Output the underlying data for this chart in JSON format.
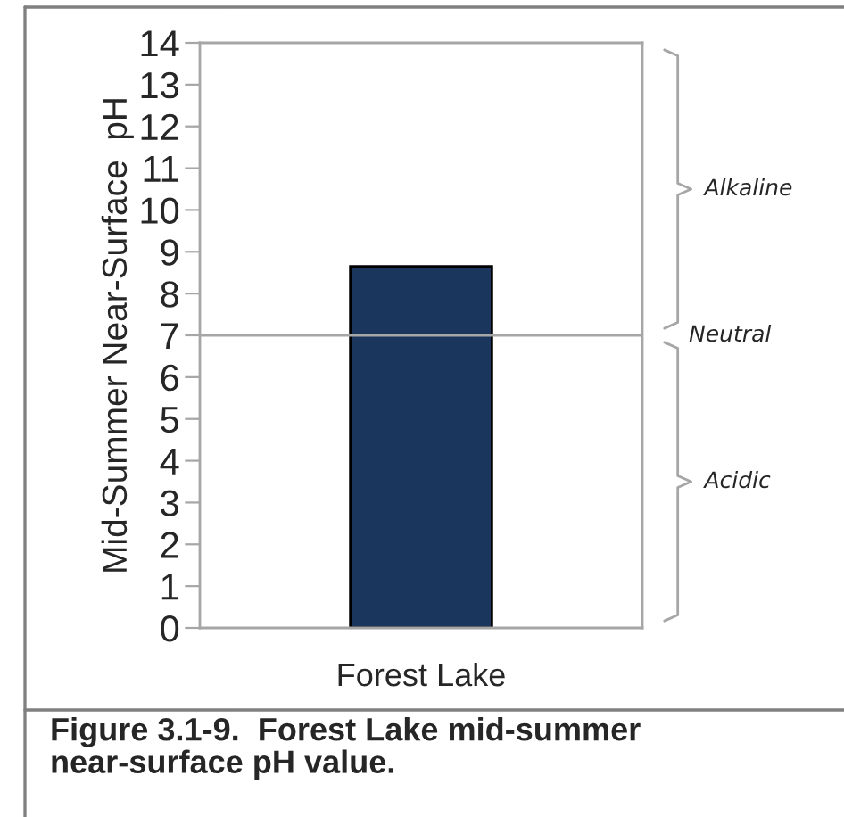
{
  "chart_data": {
    "type": "bar",
    "ylabel": "Mid-Summer Near-Surface  pH",
    "categories": [
      "Forest Lake"
    ],
    "values": [
      8.65
    ],
    "color": "#1b365d",
    "ylim": [
      0,
      14
    ],
    "yticks": [
      0,
      1,
      2,
      3,
      4,
      5,
      6,
      7,
      8,
      9,
      10,
      11,
      12,
      13,
      14
    ],
    "grid": false,
    "ref_lines": [
      {
        "axis": "y",
        "value": 7,
        "label": "Neutral",
        "color": "#a6a6a6"
      }
    ],
    "annotations": [
      "Alkaline",
      "Acidic",
      "Figure 3.1-9.  Forest Lake mid-summer near-surface pH value."
    ]
  }
}
